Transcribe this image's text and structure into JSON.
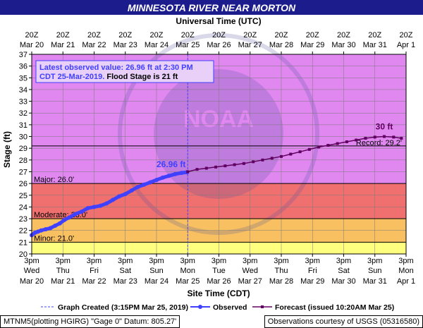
{
  "chart_data": {
    "type": "line",
    "title": "MINNESOTA RIVER NEAR MORTON",
    "top_axis_label": "Universal Time (UTC)",
    "xlabel": "Site Time (CDT)",
    "ylabel": "Stage (ft)",
    "ylim": [
      20,
      37
    ],
    "y_ticks": [
      20,
      21,
      22,
      23,
      24,
      25,
      26,
      27,
      28,
      29,
      30,
      31,
      32,
      33,
      34,
      35,
      36,
      37
    ],
    "x_range_days": [
      0,
      12
    ],
    "bottom_ticks": [
      {
        "time": "3pm",
        "dow": "Wed",
        "date": "Mar 20"
      },
      {
        "time": "3pm",
        "dow": "Thu",
        "date": "Mar 21"
      },
      {
        "time": "3pm",
        "dow": "Fri",
        "date": "Mar 22"
      },
      {
        "time": "3pm",
        "dow": "Sat",
        "date": "Mar 23"
      },
      {
        "time": "3pm",
        "dow": "Sun",
        "date": "Mar 24"
      },
      {
        "time": "3pm",
        "dow": "Mon",
        "date": "Mar 25"
      },
      {
        "time": "3pm",
        "dow": "Tue",
        "date": "Mar 26"
      },
      {
        "time": "3pm",
        "dow": "Wed",
        "date": "Mar 27"
      },
      {
        "time": "3pm",
        "dow": "Thu",
        "date": "Mar 28"
      },
      {
        "time": "3pm",
        "dow": "Fri",
        "date": "Mar 29"
      },
      {
        "time": "3pm",
        "dow": "Sat",
        "date": "Mar 30"
      },
      {
        "time": "3pm",
        "dow": "Sun",
        "date": "Mar 31"
      },
      {
        "time": "3pm",
        "dow": "Mon",
        "date": "Apr 1"
      }
    ],
    "top_ticks": [
      {
        "time": "20Z",
        "date": "Mar 20"
      },
      {
        "time": "20Z",
        "date": "Mar 21"
      },
      {
        "time": "20Z",
        "date": "Mar 22"
      },
      {
        "time": "20Z",
        "date": "Mar 23"
      },
      {
        "time": "20Z",
        "date": "Mar 24"
      },
      {
        "time": "20Z",
        "date": "Mar 25"
      },
      {
        "time": "20Z",
        "date": "Mar 26"
      },
      {
        "time": "20Z",
        "date": "Mar 27"
      },
      {
        "time": "20Z",
        "date": "Mar 28"
      },
      {
        "time": "20Z",
        "date": "Mar 29"
      },
      {
        "time": "20Z",
        "date": "Mar 30"
      },
      {
        "time": "20Z",
        "date": "Mar 31"
      },
      {
        "time": "20Z",
        "date": "Apr 1"
      }
    ],
    "flood_categories": [
      {
        "name": "Minor",
        "label": "Minor: 21.0'",
        "stage": 21.0,
        "color": "#ffff7f"
      },
      {
        "name": "Moderate",
        "label": "Moderate: 23.0'",
        "stage": 23.0,
        "color": "#f8c060"
      },
      {
        "name": "Major",
        "label": "Major: 26.0'",
        "stage": 26.0,
        "color": "#f07070"
      },
      {
        "name": "Above",
        "stage": 37.0,
        "color": "#e088f0"
      }
    ],
    "record": {
      "label": "Record: 29.2'",
      "stage": 29.2
    },
    "graph_created_day": 5.0,
    "observed": {
      "name": "Observed",
      "color": "#4040ff",
      "x": [
        0.0,
        0.1,
        0.2,
        0.3,
        0.45,
        0.6,
        0.75,
        0.9,
        1.05,
        1.2,
        1.4,
        1.6,
        1.8,
        2.0,
        2.2,
        2.4,
        2.6,
        2.8,
        3.0,
        3.2,
        3.4,
        3.6,
        3.8,
        4.0,
        4.2,
        4.4,
        4.6,
        4.8,
        4.98
      ],
      "y": [
        21.6,
        21.8,
        21.9,
        22.0,
        22.1,
        22.2,
        22.4,
        22.6,
        22.9,
        23.1,
        23.4,
        23.6,
        23.9,
        24.0,
        24.1,
        24.3,
        24.6,
        24.9,
        25.1,
        25.4,
        25.7,
        25.9,
        26.1,
        26.3,
        26.5,
        26.65,
        26.8,
        26.9,
        26.96
      ]
    },
    "observed_label": {
      "text": "26.96 ft",
      "x": 4.98,
      "y": 26.96
    },
    "forecast": {
      "name": "Forecast (issued 10:20AM Mar 25)",
      "color": "#600060",
      "x": [
        5.0,
        5.3,
        5.6,
        5.9,
        6.2,
        6.5,
        6.8,
        7.1,
        7.4,
        7.7,
        8.0,
        8.3,
        8.6,
        8.9,
        9.2,
        9.5,
        9.8,
        10.1,
        10.4,
        10.7,
        11.0,
        11.3,
        11.6,
        11.85
      ],
      "y": [
        27.0,
        27.2,
        27.3,
        27.4,
        27.5,
        27.6,
        27.7,
        27.85,
        28.0,
        28.15,
        28.3,
        28.5,
        28.7,
        28.9,
        29.1,
        29.25,
        29.4,
        29.55,
        29.7,
        29.85,
        29.95,
        30.0,
        29.95,
        29.85
      ]
    },
    "forecast_label": {
      "text": "30 ft",
      "x": 11.3,
      "y": 30.0
    },
    "info_box": {
      "line1": "Latest observed value: 26.96 ft at 2:30 PM",
      "line2a": "CDT 25-Mar-2019.",
      "line2b": " Flood Stage is 21 ft"
    },
    "legend": {
      "graph_created": "Graph Created (3:15PM Mar 25, 2019)",
      "observed": "Observed",
      "forecast": "Forecast (issued 10:20AM Mar 25)"
    }
  },
  "footer": {
    "left": "MTNM5(plotting HGIRG) \"Gage 0\" Datum: 805.27'",
    "right": "Observations courtesy of USGS (05316580)"
  },
  "colors": {
    "title_bar": "#1c1c8c",
    "title_text": "#ffffff",
    "grid": "#7a7a7a",
    "info_bg": "#e8d0f8",
    "info_border": "#4040ff"
  }
}
